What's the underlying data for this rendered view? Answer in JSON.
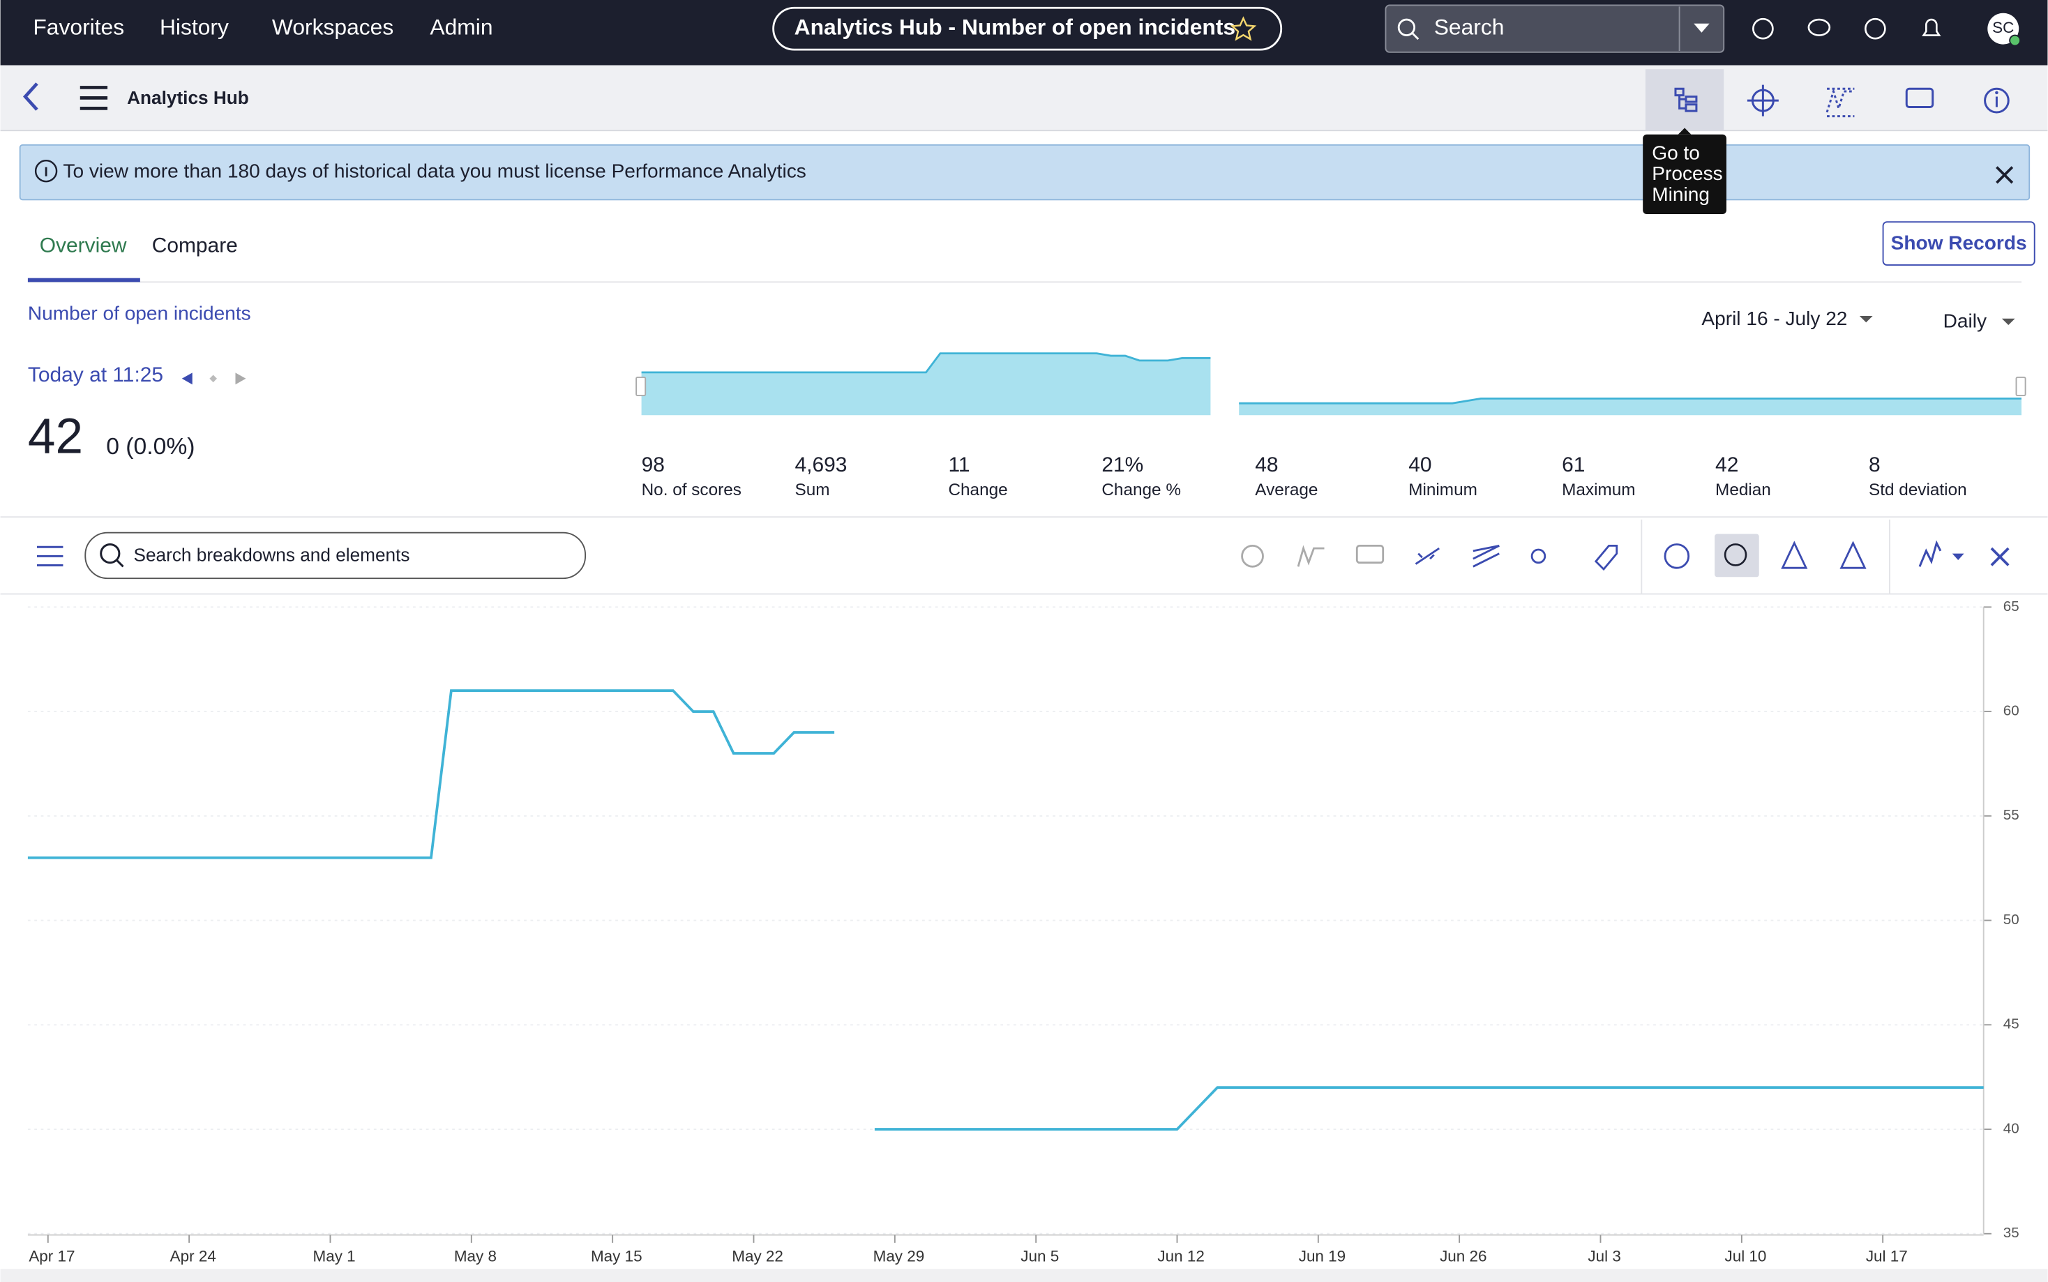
{
  "nav": {
    "items": [
      "Favorites",
      "History",
      "Workspaces",
      "Admin"
    ],
    "title": "Analytics Hub - Number of open incidents",
    "search": "Search",
    "avatar": "SC"
  },
  "toolbar": {
    "title": "Analytics Hub",
    "tooltip": [
      "Go to",
      "Process",
      "Mining"
    ]
  },
  "banner": "To view more than 180 days of historical data you must license Performance Analytics",
  "tabs": [
    "Overview",
    "Compare"
  ],
  "show_records": "Show Records",
  "indicator": {
    "name": "Number of open incidents",
    "date_range": "April 16 - July 22",
    "frequency": "Daily",
    "time": "Today at 11:25",
    "score": "42",
    "change": "0 (0.0%)"
  },
  "stats": [
    {
      "value": "98",
      "label": "No. of scores"
    },
    {
      "value": "4,693",
      "label": "Sum"
    },
    {
      "value": "11",
      "label": "Change"
    },
    {
      "value": "21%",
      "label": "Change %"
    },
    {
      "value": "48",
      "label": "Average"
    },
    {
      "value": "40",
      "label": "Minimum"
    },
    {
      "value": "61",
      "label": "Maximum"
    },
    {
      "value": "42",
      "label": "Median"
    },
    {
      "value": "8",
      "label": "Std deviation"
    }
  ],
  "breakdown_search": "Search breakdowns and elements",
  "chart_data": {
    "type": "line",
    "color": "#3fb3d6",
    "x": [
      "Apr 16",
      "May 6",
      "May 7",
      "May 18",
      "May 19",
      "May 20",
      "May 21",
      "May 23",
      "May 24",
      "May 26",
      "May 27",
      "May 28",
      "Jun 12",
      "Jun 14",
      "Jul 22"
    ],
    "values": [
      53,
      53,
      61,
      61,
      60,
      60,
      58,
      58,
      59,
      59,
      null,
      40,
      40,
      42,
      42
    ],
    "xlim": [
      "Apr 16",
      "Jul 22"
    ],
    "xticks": [
      "Apr 17",
      "Apr 24",
      "May 1",
      "May 8",
      "May 15",
      "May 22",
      "May 29",
      "Jun 5",
      "Jun 12",
      "Jun 19",
      "Jun 26",
      "Jul 3",
      "Jul 10",
      "Jul 17"
    ],
    "ylim": [
      35,
      65
    ],
    "yticks": [
      35,
      40,
      45,
      50,
      55,
      60,
      65
    ],
    "grid": true
  }
}
